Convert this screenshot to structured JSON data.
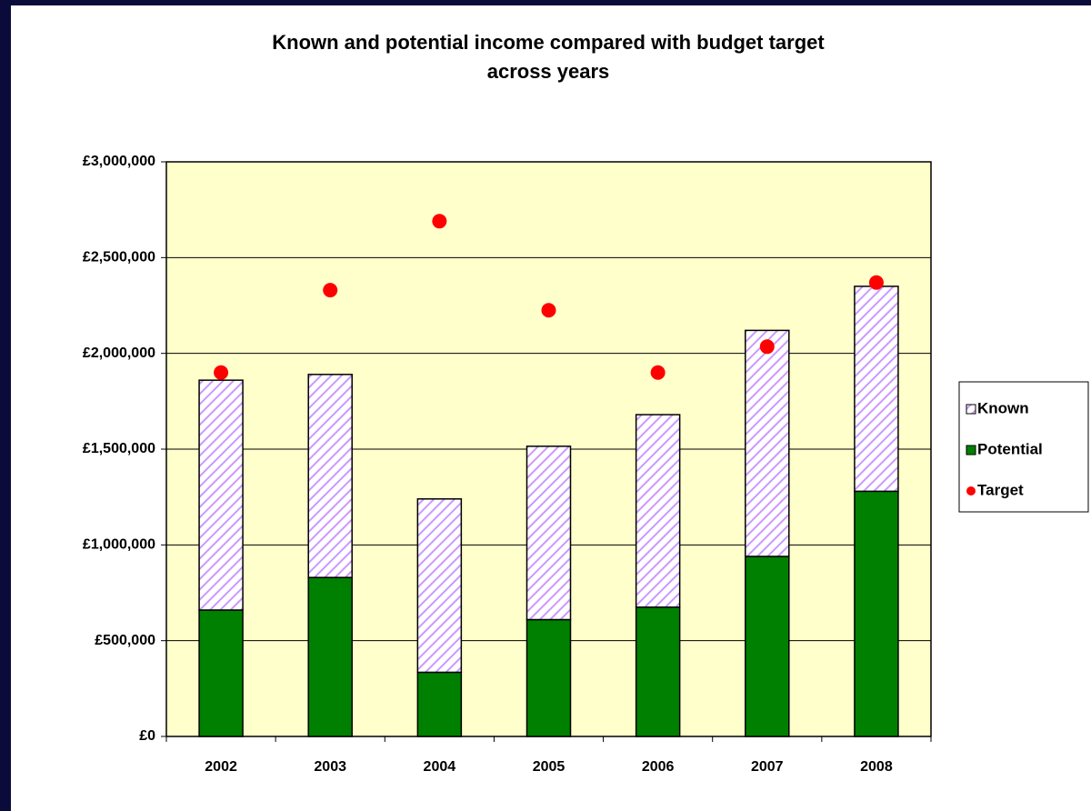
{
  "chart_data": {
    "type": "bar",
    "title": [
      "Known and potential income compared with budget target",
      "across years"
    ],
    "categories": [
      "2002",
      "2003",
      "2004",
      "2005",
      "2006",
      "2007",
      "2008"
    ],
    "series": [
      {
        "name": "Known",
        "color": "#cc99ff",
        "type": "bar",
        "pattern": "hatch",
        "values": [
          1200000,
          1060000,
          905000,
          905000,
          1005000,
          1180000,
          1070000
        ]
      },
      {
        "name": "Potential",
        "color": "#008000",
        "type": "bar",
        "values": [
          660000,
          830000,
          335000,
          610000,
          675000,
          940000,
          1280000
        ]
      },
      {
        "name": "Target",
        "color": "#ff0000",
        "type": "scatter",
        "values": [
          1900000,
          2330000,
          2690000,
          2225000,
          1900000,
          2035000,
          2370000
        ]
      }
    ],
    "ylim": [
      0,
      3000000
    ],
    "yticks": [
      {
        "value": 0,
        "label": "£0"
      },
      {
        "value": 500000,
        "label": "£500,000"
      },
      {
        "value": 1000000,
        "label": "£1,000,000"
      },
      {
        "value": 1500000,
        "label": "£1,500,000"
      },
      {
        "value": 2000000,
        "label": "£2,000,000"
      },
      {
        "value": 2500000,
        "label": "£2,500,000"
      },
      {
        "value": 3000000,
        "label": "£3,000,000"
      }
    ],
    "grid": true,
    "stacked": true,
    "legend": "right"
  }
}
